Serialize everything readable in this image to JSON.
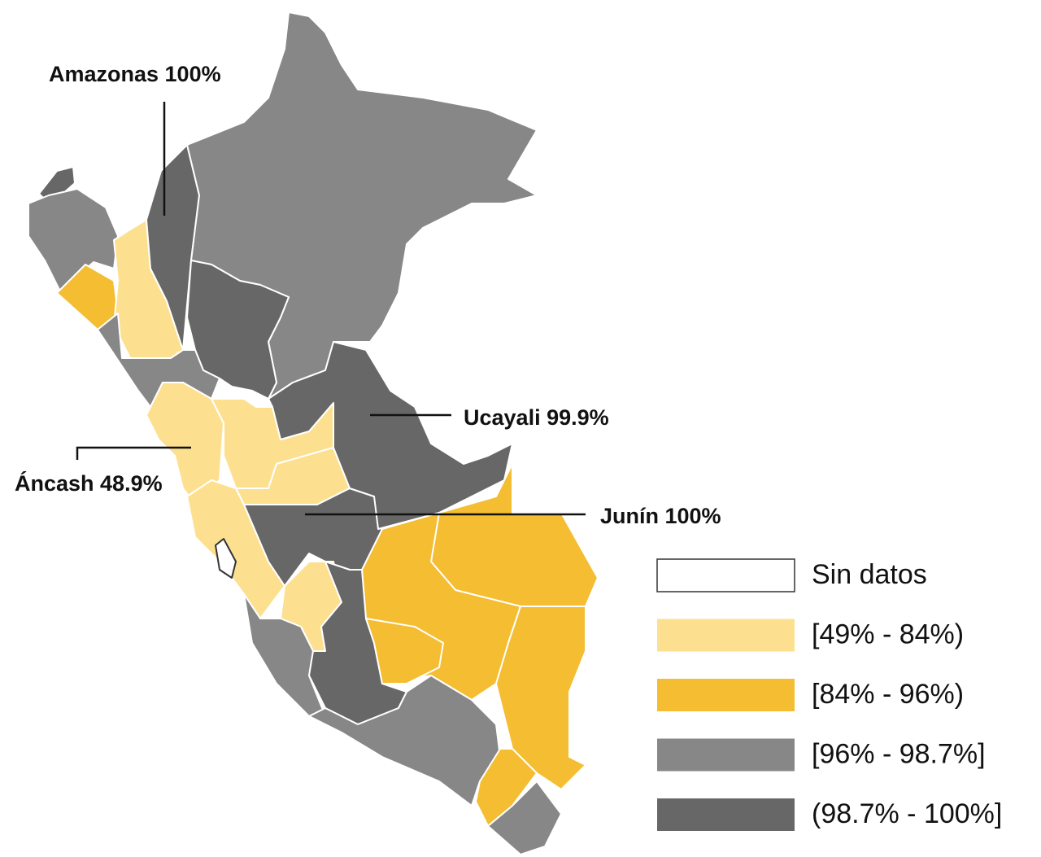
{
  "map": {
    "annotations": [
      {
        "text": "Amazonas 100%"
      },
      {
        "text": "Ucayali 99.9%"
      },
      {
        "text": "Áncash 48.9%"
      },
      {
        "text": "Junín 100%"
      }
    ],
    "legend": [
      {
        "label": "Sin datos",
        "color": "#ffffff"
      },
      {
        "label": "[49% - 84%)",
        "color": "#fde08f"
      },
      {
        "label": "[84% - 96%)",
        "color": "#f4bd32"
      },
      {
        "label": "[96% - 98.7%]",
        "color": "#878787"
      },
      {
        "label": "(98.7% - 100%]",
        "color": "#676767"
      }
    ]
  }
}
